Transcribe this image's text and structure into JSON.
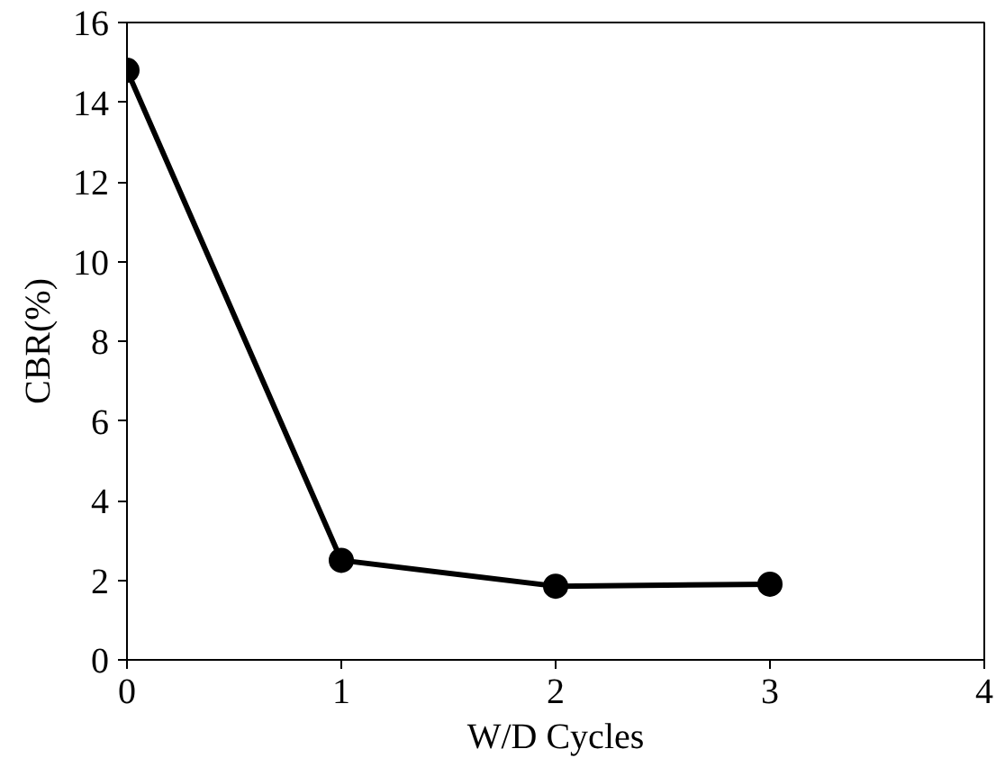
{
  "chart_data": {
    "type": "line",
    "xlabel": "W/D Cycles",
    "ylabel": "CBR(%)",
    "x": [
      0,
      1,
      2,
      3
    ],
    "series": [
      {
        "color": "#000000",
        "values": [
          14.8,
          2.5,
          1.85,
          1.9
        ]
      }
    ],
    "xlim": [
      0,
      4
    ],
    "xticks": [
      0,
      1,
      2,
      3,
      4
    ],
    "ylim": [
      0,
      16
    ],
    "yticks": [
      0,
      2,
      4,
      6,
      8,
      10,
      12,
      14,
      16
    ],
    "marker": "circle",
    "line_style": "solid"
  }
}
